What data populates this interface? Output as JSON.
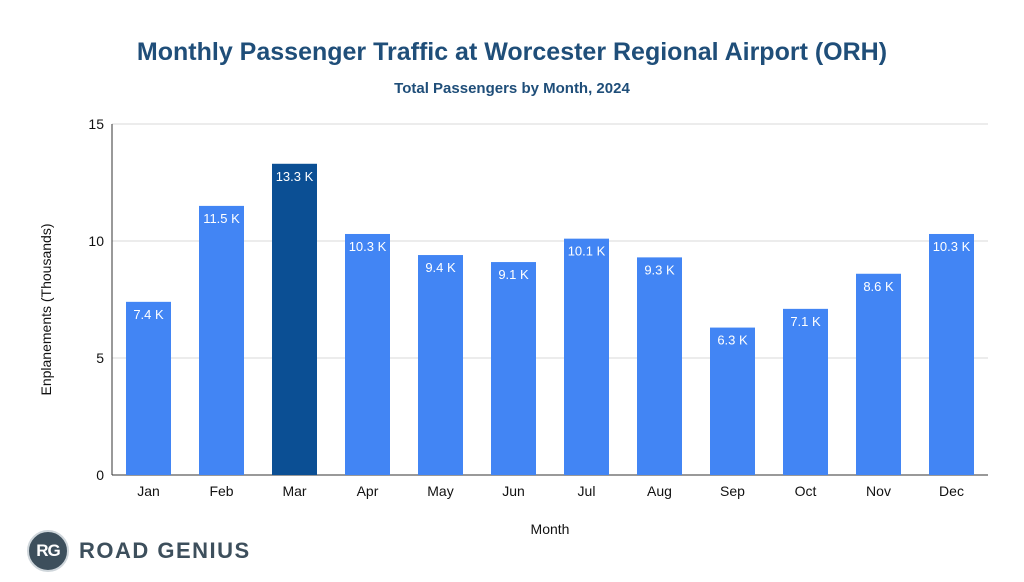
{
  "colors": {
    "bar": "#4285f4",
    "bar_highlight": "#0b4f94",
    "title": "#1f4e79",
    "axis_text": "#111111",
    "grid": "#d9d9d9",
    "label": "#ffffff"
  },
  "branding": {
    "logo_initials": "RG",
    "logo_text": "ROAD GENIUS"
  },
  "chart_data": {
    "type": "bar",
    "title": "Monthly Passenger Traffic at Worcester Regional Airport (ORH)",
    "subtitle": "Total Passengers by Month, 2024",
    "xlabel": "Month",
    "ylabel": "Enplanements (Thousands)",
    "ylim": [
      0,
      15
    ],
    "yticks": [
      0,
      5,
      10,
      15
    ],
    "grid": true,
    "categories": [
      "Jan",
      "Feb",
      "Mar",
      "Apr",
      "May",
      "Jun",
      "Jul",
      "Aug",
      "Sep",
      "Oct",
      "Nov",
      "Dec"
    ],
    "values": [
      7.4,
      11.5,
      13.3,
      10.3,
      9.4,
      9.1,
      10.1,
      9.3,
      6.3,
      7.1,
      8.6,
      10.3
    ],
    "data_labels": [
      "7.4 K",
      "11.5 K",
      "13.3 K",
      "10.3 K",
      "9.4 K",
      "9.1 K",
      "10.1 K",
      "9.3 K",
      "6.3 K",
      "7.1 K",
      "8.6 K",
      "10.3 K"
    ],
    "highlight_category": "Mar"
  }
}
